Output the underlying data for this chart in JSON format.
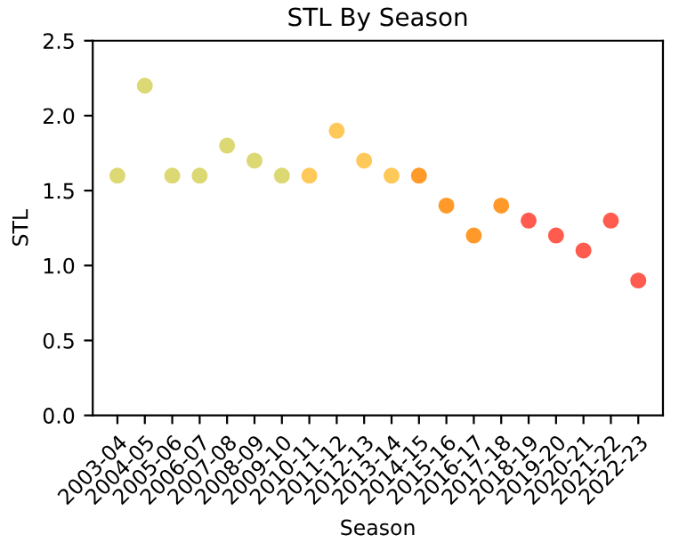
{
  "chart_data": {
    "type": "scatter",
    "title": "STL By Season",
    "xlabel": "Season",
    "ylabel": "STL",
    "categories": [
      "2003-04",
      "2004-05",
      "2005-06",
      "2006-07",
      "2007-08",
      "2008-09",
      "2009-10",
      "2010-11",
      "2011-12",
      "2012-13",
      "2013-14",
      "2014-15",
      "2015-16",
      "2016-17",
      "2017-18",
      "2018-19",
      "2019-20",
      "2020-21",
      "2021-22",
      "2022-23"
    ],
    "values": [
      1.6,
      2.2,
      1.6,
      1.6,
      1.8,
      1.7,
      1.6,
      1.6,
      1.9,
      1.7,
      1.6,
      1.6,
      1.4,
      1.2,
      1.4,
      1.3,
      1.2,
      1.1,
      1.3,
      0.9
    ],
    "colors": [
      "#dcd873",
      "#dcd873",
      "#dcd873",
      "#dcd873",
      "#dcd873",
      "#dcd873",
      "#dcd873",
      "#ffc95a",
      "#ffc95a",
      "#ffc95a",
      "#ffc95a",
      "#ff9a2a",
      "#ff9a2a",
      "#ff9a2a",
      "#ff9a2a",
      "#ff5b4f",
      "#ff5b4f",
      "#ff5b4f",
      "#ff5b4f",
      "#ff5b4f"
    ],
    "ylim": [
      0,
      2.5
    ],
    "yticks": [
      {
        "value": 0,
        "label": "0.0"
      },
      {
        "value": 0.5,
        "label": "0.5"
      },
      {
        "value": 1,
        "label": "1.0"
      },
      {
        "value": 1.5,
        "label": "1.5"
      },
      {
        "value": 2,
        "label": "2.0"
      },
      {
        "value": 2.5,
        "label": "2.5"
      }
    ],
    "marker": "circle",
    "grid": false,
    "legend": false
  }
}
